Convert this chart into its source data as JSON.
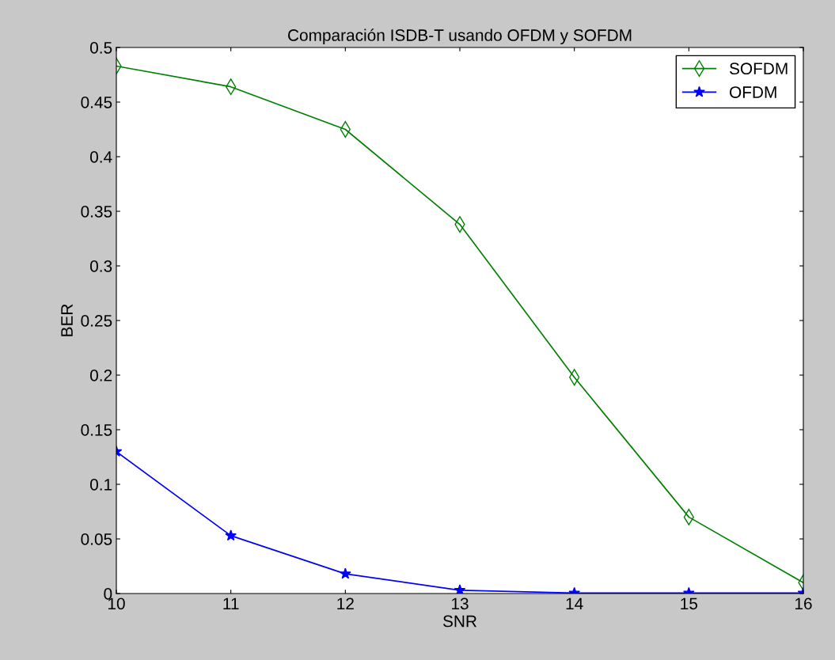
{
  "chart_data": {
    "type": "line",
    "title": "Comparación ISDB-T usando OFDM y SOFDM",
    "xlabel": "SNR",
    "ylabel": "BER",
    "x": [
      10,
      11,
      12,
      13,
      14,
      15,
      16
    ],
    "series": [
      {
        "name": "SOFDM",
        "color": "#008000",
        "marker": "diamond",
        "values": [
          0.483,
          0.464,
          0.425,
          0.338,
          0.198,
          0.07,
          0.01
        ]
      },
      {
        "name": "OFDM",
        "color": "#0000ff",
        "marker": "star",
        "values": [
          0.13,
          0.053,
          0.018,
          0.003,
          0.0005,
          0.0005,
          0.0005
        ]
      }
    ],
    "xlim": [
      10,
      16
    ],
    "xticks": [
      10,
      11,
      12,
      13,
      14,
      15,
      16
    ],
    "ylim": [
      0,
      0.5
    ],
    "yticks": [
      0,
      0.05,
      0.1,
      0.15,
      0.2,
      0.25,
      0.3,
      0.35,
      0.4,
      0.45,
      0.5
    ],
    "grid": false,
    "legend": "top right",
    "line_style": "solid"
  }
}
